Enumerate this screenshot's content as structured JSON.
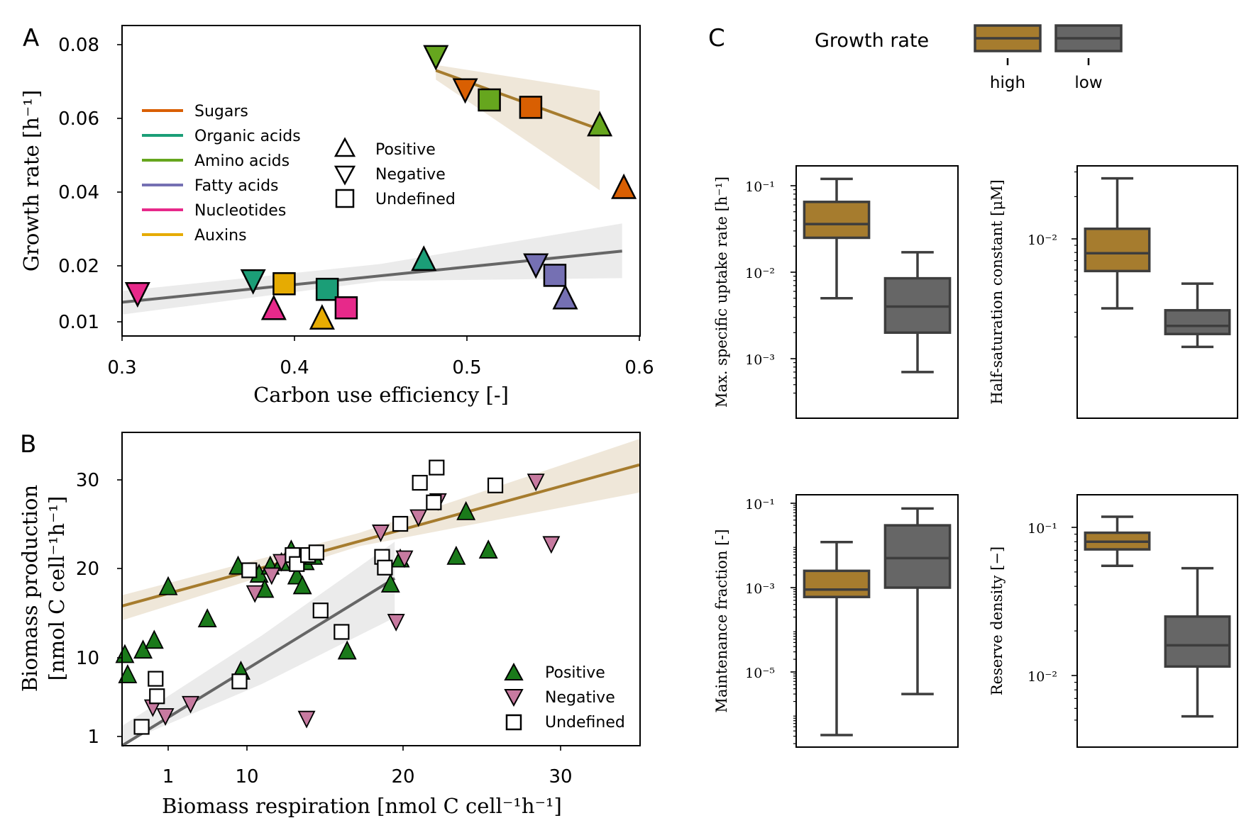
{
  "panels": {
    "A": {
      "letter": "A",
      "xlabel": "Carbon use efficiency [-]",
      "ylabel": "Growth rate [h⁻¹]",
      "xticks": [
        "0.3",
        "0.4",
        "0.5",
        "0.6"
      ],
      "yticks": [
        "0.01",
        "0.02",
        "0.04",
        "0.06",
        "0.08"
      ],
      "legend_groups": [
        {
          "label": "Sugars",
          "color": "#d95f02"
        },
        {
          "label": "Organic acids",
          "color": "#1b9e77"
        },
        {
          "label": "Amino acids",
          "color": "#66a61e"
        },
        {
          "label": "Fatty acids",
          "color": "#7570b3"
        },
        {
          "label": "Nucleotides",
          "color": "#e7298a"
        },
        {
          "label": "Auxins",
          "color": "#e6ab02"
        }
      ],
      "legend_markers": [
        {
          "label": "Positive",
          "marker": "triangle-up"
        },
        {
          "label": "Negative",
          "marker": "triangle-down"
        },
        {
          "label": "Undefined",
          "marker": "square"
        }
      ]
    },
    "B": {
      "letter": "B",
      "xlabel": "Biomass respiration [nmol C cell⁻¹h⁻¹]",
      "ylabel_line1": "Biomass production",
      "ylabel_line2": "[nmol C cell⁻¹h⁻¹]",
      "xticks": [
        "1",
        "10",
        "20",
        "30"
      ],
      "yticks": [
        "1",
        "10",
        "20",
        "30"
      ],
      "legend_markers": [
        {
          "label": "Positive",
          "marker": "triangle-up",
          "color": "#1a7a1a"
        },
        {
          "label": "Negative",
          "marker": "triangle-down",
          "color": "#c77aa0"
        },
        {
          "label": "Undefined",
          "marker": "square",
          "color": "#ffffff"
        }
      ]
    },
    "C": {
      "letter": "C",
      "legend_title": "Growth rate",
      "legend_items": [
        {
          "label": "high",
          "color": "#a67c2e"
        },
        {
          "label": "low",
          "color": "#666666"
        }
      ],
      "subplots": [
        {
          "ylabel": "Max. specific uptake rate [h⁻¹]",
          "ticks": [
            "10⁻¹",
            "10⁻²",
            "10⁻³"
          ]
        },
        {
          "ylabel": "Half-saturation constant [μM]",
          "ticks": [
            "10⁻²"
          ]
        },
        {
          "ylabel": "Maintenance fraction [-]",
          "ticks": [
            "10⁻¹",
            "10⁻³",
            "10⁻⁵"
          ]
        },
        {
          "ylabel": "Reserve density [−]",
          "ticks": [
            "10⁻¹",
            "10⁻²"
          ]
        }
      ]
    }
  },
  "chart_data": [
    {
      "type": "scatter",
      "panel": "A",
      "xlabel": "Carbon use efficiency [-]",
      "ylabel": "Growth rate [h⁻¹]",
      "xlim": [
        0.3,
        0.6
      ],
      "ylim": [
        0.007,
        0.085
      ],
      "points": [
        {
          "x": 0.482,
          "y": 0.077,
          "group": "Amino acids",
          "interaction": "Negative"
        },
        {
          "x": 0.499,
          "y": 0.068,
          "group": "Sugars",
          "interaction": "Negative"
        },
        {
          "x": 0.513,
          "y": 0.065,
          "group": "Amino acids",
          "interaction": "Undefined"
        },
        {
          "x": 0.537,
          "y": 0.063,
          "group": "Sugars",
          "interaction": "Undefined"
        },
        {
          "x": 0.577,
          "y": 0.058,
          "group": "Amino acids",
          "interaction": "Positive"
        },
        {
          "x": 0.591,
          "y": 0.041,
          "group": "Sugars",
          "interaction": "Positive"
        },
        {
          "x": 0.309,
          "y": 0.0152,
          "group": "Nucleotides",
          "interaction": "Negative"
        },
        {
          "x": 0.376,
          "y": 0.0175,
          "group": "Organic acids",
          "interaction": "Negative"
        },
        {
          "x": 0.394,
          "y": 0.0168,
          "group": "Auxins",
          "interaction": "Undefined"
        },
        {
          "x": 0.388,
          "y": 0.0122,
          "group": "Nucleotides",
          "interaction": "Positive"
        },
        {
          "x": 0.419,
          "y": 0.0158,
          "group": "Organic acids",
          "interaction": "Undefined"
        },
        {
          "x": 0.43,
          "y": 0.0125,
          "group": "Nucleotides",
          "interaction": "Undefined"
        },
        {
          "x": 0.416,
          "y": 0.0105,
          "group": "Auxins",
          "interaction": "Positive"
        },
        {
          "x": 0.475,
          "y": 0.0215,
          "group": "Organic acids",
          "interaction": "Positive"
        },
        {
          "x": 0.54,
          "y": 0.0205,
          "group": "Fatty acids",
          "interaction": "Negative"
        },
        {
          "x": 0.551,
          "y": 0.0183,
          "group": "Fatty acids",
          "interaction": "Undefined"
        },
        {
          "x": 0.557,
          "y": 0.0141,
          "group": "Fatty acids",
          "interaction": "Positive"
        }
      ],
      "fits": [
        {
          "group": "high",
          "color": "#a67c2e",
          "x": [
            0.482,
            0.577
          ],
          "y": [
            0.073,
            0.057
          ]
        },
        {
          "group": "low",
          "color": "#666666",
          "x": [
            0.3,
            0.59
          ],
          "y": [
            0.0135,
            0.024
          ]
        }
      ]
    },
    {
      "type": "scatter",
      "panel": "B",
      "xlabel": "Biomass respiration [nmol C cell⁻¹h⁻¹]",
      "ylabel": "Biomass production [nmol C cell⁻¹h⁻¹]",
      "xlim": [
        -2,
        35
      ],
      "ylim": [
        0,
        35
      ],
      "series": [
        {
          "name": "Positive",
          "points": [
            [
              -1.8,
              10.3
            ],
            [
              -1.6,
              8
            ],
            [
              -0.5,
              10.8
            ],
            [
              0.3,
              11.9
            ],
            [
              1.3,
              17.9
            ],
            [
              4.1,
              14.3
            ],
            [
              6.3,
              20.2
            ],
            [
              6.5,
              8.4
            ],
            [
              7.8,
              19.3
            ],
            [
              8.2,
              17.6
            ],
            [
              8.6,
              20.2
            ],
            [
              9.4,
              20.6
            ],
            [
              10.1,
              22
            ],
            [
              10.5,
              19.1
            ],
            [
              10.9,
              18
            ],
            [
              11.1,
              20.7
            ],
            [
              11.7,
              21.3
            ],
            [
              14.1,
              10.7
            ],
            [
              17.2,
              18.2
            ],
            [
              17.9,
              21
            ],
            [
              21.9,
              21.3
            ],
            [
              22.6,
              26.3
            ],
            [
              24.2,
              22
            ]
          ]
        },
        {
          "name": "Negative",
          "points": [
            [
              0.2,
              4.4
            ],
            [
              1.1,
              3.4
            ],
            [
              2.9,
              4.8
            ],
            [
              7.5,
              17.3
            ],
            [
              8.7,
              19.3
            ],
            [
              9.4,
              20.8
            ],
            [
              11.2,
              3.1
            ],
            [
              16.5,
              24.1
            ],
            [
              17.6,
              14.1
            ],
            [
              18.2,
              21.2
            ],
            [
              19.2,
              25.8
            ],
            [
              20.6,
              27.6
            ],
            [
              27.6,
              29.8
            ],
            [
              28.7,
              22.8
            ]
          ]
        },
        {
          "name": "Undefined",
          "points": [
            [
              -0.6,
              2.1
            ],
            [
              0.4,
              7.6
            ],
            [
              0.5,
              5.6
            ],
            [
              6.4,
              7.3
            ],
            [
              7.1,
              19.8
            ],
            [
              10.2,
              21.5
            ],
            [
              10.5,
              20.5
            ],
            [
              11.3,
              21.5
            ],
            [
              11.9,
              21.8
            ],
            [
              12.2,
              15.3
            ],
            [
              13.7,
              12.9
            ],
            [
              16.6,
              21.3
            ],
            [
              16.8,
              20.1
            ],
            [
              17.9,
              25
            ],
            [
              19.3,
              29.6
            ],
            [
              20.3,
              27.4
            ],
            [
              20.5,
              31.3
            ],
            [
              24.7,
              29.3
            ]
          ]
        }
      ],
      "fits": [
        {
          "group": "high",
          "color": "#a67c2e",
          "x": [
            -2,
            35
          ],
          "y": [
            15.8,
            31.6
          ]
        },
        {
          "group": "low",
          "color": "#666666",
          "x": [
            -2,
            17.5
          ],
          "y": [
            0,
            18.9
          ]
        }
      ]
    },
    {
      "type": "box",
      "panel": "C",
      "ylabel": "Max. specific uptake rate [h⁻¹]",
      "scale": "log",
      "ylim": [
        0.0004,
        0.13
      ],
      "categories": [
        "high",
        "low"
      ],
      "boxes": [
        {
          "name": "high",
          "whisker_low": 0.005,
          "q1": 0.025,
          "median": 0.036,
          "q3": 0.065,
          "whisker_high": 0.12
        },
        {
          "name": "low",
          "whisker_low": 0.0007,
          "q1": 0.002,
          "median": 0.004,
          "q3": 0.0085,
          "whisker_high": 0.017
        }
      ]
    },
    {
      "type": "box",
      "panel": "C",
      "ylabel": "Half-saturation constant [μM]",
      "scale": "log",
      "ylim": [
        0.0014,
        0.033
      ],
      "categories": [
        "high",
        "low"
      ],
      "boxes": [
        {
          "name": "high",
          "whisker_low": 0.0032,
          "q1": 0.0059,
          "median": 0.0079,
          "q3": 0.0118,
          "whisker_high": 0.027
        },
        {
          "name": "low",
          "whisker_low": 0.0017,
          "q1": 0.0021,
          "median": 0.0024,
          "q3": 0.0031,
          "whisker_high": 0.0048
        }
      ]
    },
    {
      "type": "box",
      "panel": "C",
      "ylabel": "Maintenance fraction [-]",
      "scale": "log",
      "ylim": [
        1e-07,
        0.15
      ],
      "categories": [
        "high",
        "low"
      ],
      "boxes": [
        {
          "name": "high",
          "whisker_low": 3.2e-07,
          "q1": 0.0006,
          "median": 0.0009,
          "q3": 0.0025,
          "whisker_high": 0.012
        },
        {
          "name": "low",
          "whisker_low": 3e-06,
          "q1": 0.001,
          "median": 0.005,
          "q3": 0.03,
          "whisker_high": 0.075
        }
      ]
    },
    {
      "type": "box",
      "panel": "C",
      "ylabel": "Reserve density [−]",
      "scale": "log",
      "ylim": [
        0.0042,
        0.14
      ],
      "categories": [
        "high",
        "low"
      ],
      "boxes": [
        {
          "name": "high",
          "whisker_low": 0.055,
          "q1": 0.071,
          "median": 0.08,
          "q3": 0.092,
          "whisker_high": 0.118
        },
        {
          "name": "low",
          "whisker_low": 0.0053,
          "q1": 0.0115,
          "median": 0.016,
          "q3": 0.025,
          "whisker_high": 0.053
        }
      ]
    }
  ]
}
